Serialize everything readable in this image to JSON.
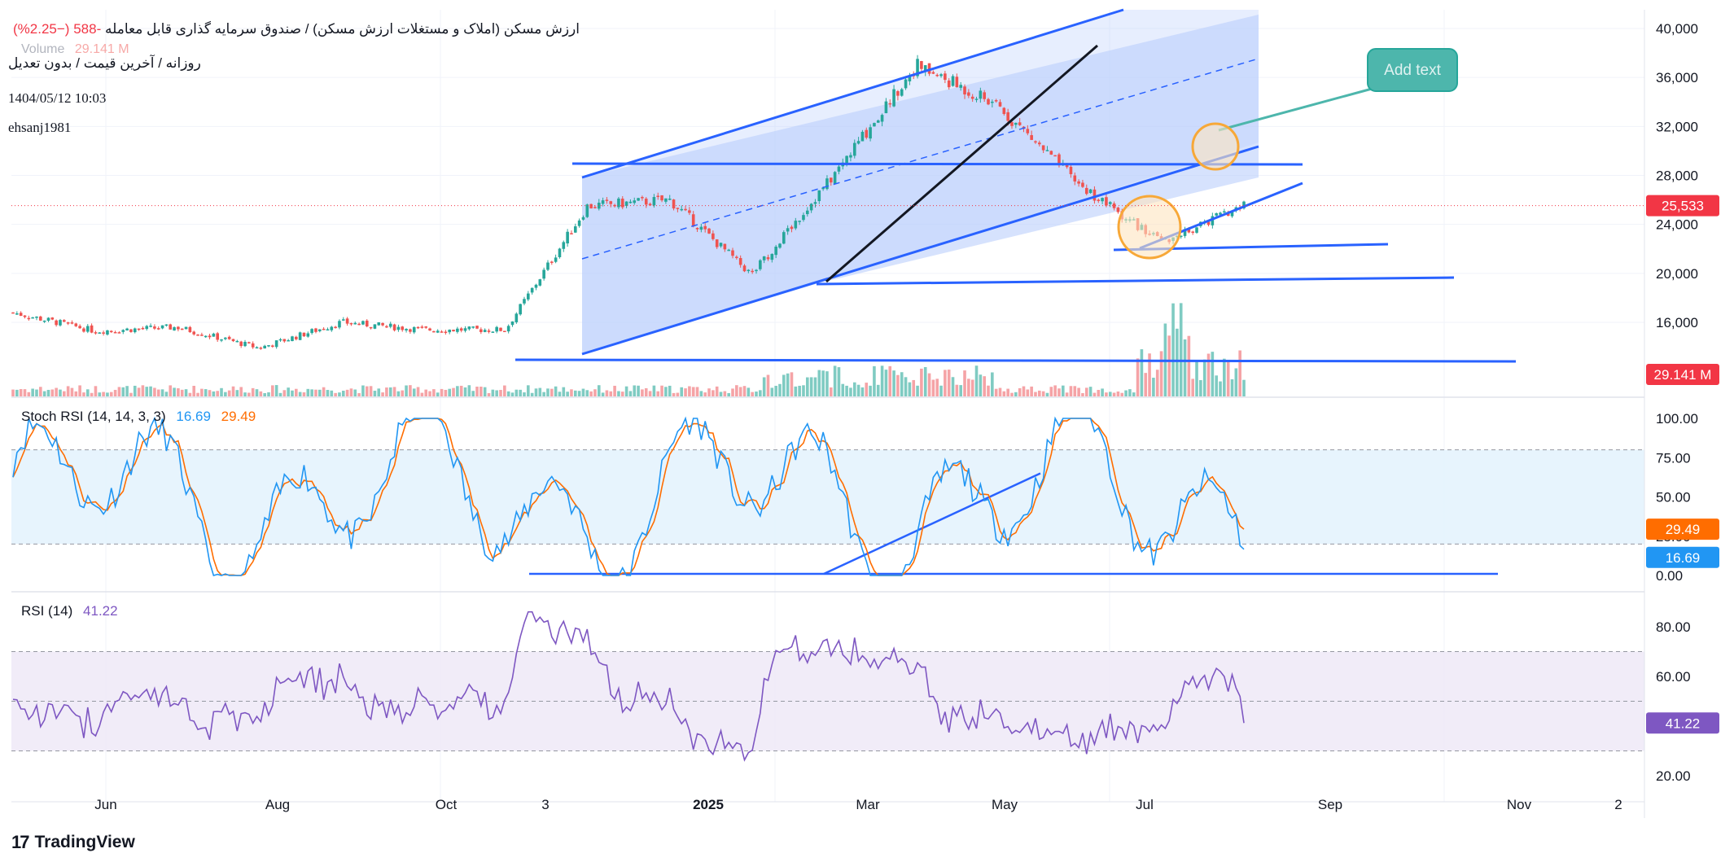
{
  "header": {
    "symbol_title": "ارزش مسکن (املاک و مستغلات ارزش مسکن) / صندوق سرمایه گذاری قابل معامله",
    "change": "-588 (−2.25%)",
    "volume_label": "Volume",
    "volume_value": "29.141 M",
    "subtitle": "روزانه / آخرین قیمت / بدون تعدیل",
    "timestamp": "1404/05/12 10:03",
    "author": "ehsanj1981"
  },
  "colors": {
    "up": "#26a69a",
    "down": "#ef5350",
    "trend": "#2962ff",
    "channel_fill": "#bbcefc",
    "circle": "#f7a838",
    "stoch_k": "#2196f3",
    "stoch_d": "#ff6d00",
    "rsi": "#7e57c2",
    "callout": "#4db6ac"
  },
  "price_axis": {
    "ticks": [
      "40,000",
      "36,000",
      "32,000",
      "28,000",
      "24,000",
      "20,000",
      "16,000"
    ],
    "last_price_label": "25,533",
    "volume_label": "29.141 M"
  },
  "stoch_axis": {
    "ticks": [
      "100.00",
      "75.00",
      "50.00",
      "25.00",
      "0.00"
    ],
    "k_label": "16.69",
    "d_label": "29.49"
  },
  "rsi_axis": {
    "ticks": [
      "80.00",
      "60.00",
      "40.00",
      "20.00"
    ],
    "value_label": "41.22"
  },
  "time_axis": [
    "Jun",
    "Aug",
    "Oct",
    "3",
    "2025",
    "Mar",
    "May",
    "Jul",
    "Sep",
    "Nov",
    "2"
  ],
  "annotation": {
    "callout_text": "Add text"
  },
  "indicators": {
    "stoch": {
      "name": "Stoch RSI (14, 14, 3, 3)",
      "k": "16.69",
      "d": "29.49"
    },
    "rsi": {
      "name": "RSI (14)",
      "value": "41.22"
    }
  },
  "branding": {
    "name": "TradingView"
  },
  "chart_data": {
    "type": "candlestick",
    "symbol": "ارزش مسکن",
    "last_price": 25533,
    "change": -588,
    "change_percent": -2.25,
    "ylim": [
      14000,
      41000
    ],
    "price_path": [
      {
        "date": "May 2024",
        "close": 16800
      },
      {
        "date": "Jun 2024",
        "close": 15300
      },
      {
        "date": "Jul 2024",
        "close": 15600
      },
      {
        "date": "Aug 2024",
        "close": 13900
      },
      {
        "date": "Sep 2024",
        "close": 16000
      },
      {
        "date": "Oct 2024",
        "close": 15400
      },
      {
        "date": "Nov 2024",
        "close": 15400
      },
      {
        "date": "Dec 2024",
        "close": 25500
      },
      {
        "date": "Jan 2025",
        "close": 26000
      },
      {
        "date": "Feb 2025",
        "close": 19900
      },
      {
        "date": "Mar 2025",
        "close": 28000
      },
      {
        "date": "Apr 2025",
        "close": 37000
      },
      {
        "date": "May 2025",
        "close": 33700
      },
      {
        "date": "Jun 2025",
        "close": 27200
      },
      {
        "date": "Jul 2025",
        "close": 22500
      },
      {
        "date": "Aug 2025",
        "close": 25533
      }
    ],
    "stoch_rsi": {
      "k": 16.69,
      "d": 29.49,
      "bands": [
        20,
        80
      ],
      "ylim": [
        0,
        100
      ]
    },
    "rsi": {
      "value": 41.22,
      "bands": [
        30,
        50,
        70
      ],
      "ylim": [
        20,
        90
      ]
    },
    "volume_last": "29.141 M"
  }
}
